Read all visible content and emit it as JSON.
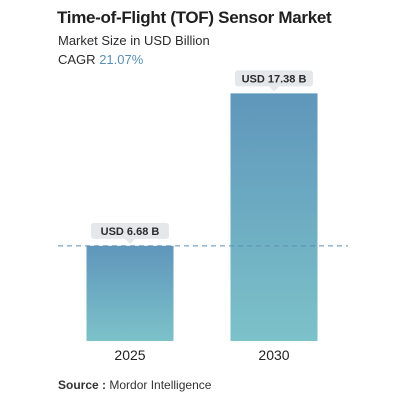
{
  "header": {
    "title": "Time-of-Flight (TOF) Sensor Market",
    "subtitle": "Market Size in USD Billion",
    "cagr_label": "CAGR",
    "cagr_value": "21.07%"
  },
  "footer": {
    "source_label": "Source :",
    "source_value": "Mordor Intelligence"
  },
  "colors": {
    "bar_top": "#5f96bb",
    "bar_bottom": "#7cc2c9",
    "dashed_line": "#5b8fb5",
    "label_bg": "#e4e8eb",
    "cagr_accent": "#5b8fb5"
  },
  "chart_data": {
    "type": "bar",
    "title": "Time-of-Flight (TOF) Sensor Market",
    "subtitle": "Market Size in USD Billion",
    "categories": [
      "2025",
      "2030"
    ],
    "values": [
      6.68,
      17.38
    ],
    "data_labels": [
      "USD 6.68 B",
      "USD 17.38 B"
    ],
    "ylim": [
      0,
      18.6
    ],
    "grid": false,
    "reference_line": 6.68,
    "xlabel": "",
    "ylabel": ""
  }
}
